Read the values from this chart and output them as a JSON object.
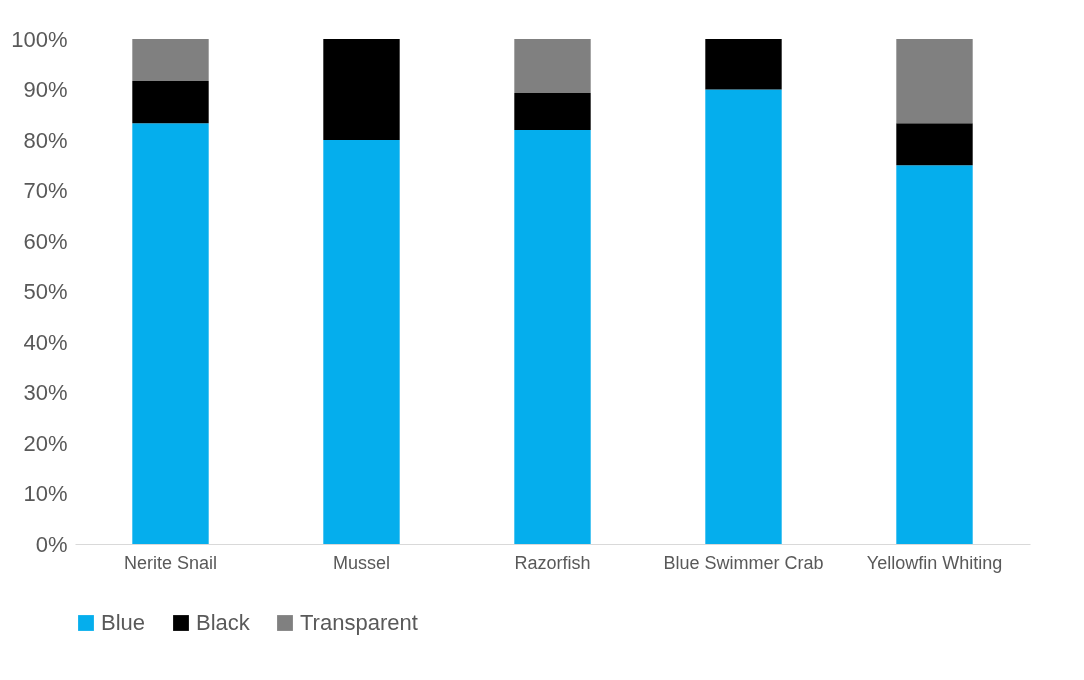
{
  "chart_data": {
    "type": "bar",
    "stacked": true,
    "categories": [
      "Nerite Snail",
      "Mussel",
      "Razorfish",
      "Blue Swimmer Crab",
      "Yellowfin Whiting"
    ],
    "series": [
      {
        "name": "Blue",
        "color": "#05aeed",
        "values": [
          83.3,
          80,
          82,
          90,
          75
        ]
      },
      {
        "name": "Black",
        "color": "#000000",
        "values": [
          8.4,
          20,
          7.3,
          10,
          8.3
        ]
      },
      {
        "name": "Transparent",
        "color": "#808080",
        "values": [
          8.3,
          0,
          10.7,
          0,
          16.7
        ]
      }
    ],
    "ylim": [
      0,
      100
    ],
    "yticks": [
      {
        "value": 0,
        "label": "0%"
      },
      {
        "value": 10,
        "label": "10%"
      },
      {
        "value": 20,
        "label": "20%"
      },
      {
        "value": 30,
        "label": "30%"
      },
      {
        "value": 40,
        "label": "40%"
      },
      {
        "value": 50,
        "label": "50%"
      },
      {
        "value": 60,
        "label": "60%"
      },
      {
        "value": 70,
        "label": "70%"
      },
      {
        "value": 80,
        "label": "80%"
      },
      {
        "value": 90,
        "label": "90%"
      },
      {
        "value": 100,
        "label": "100%"
      }
    ],
    "grid": false,
    "legend": "bottom"
  }
}
